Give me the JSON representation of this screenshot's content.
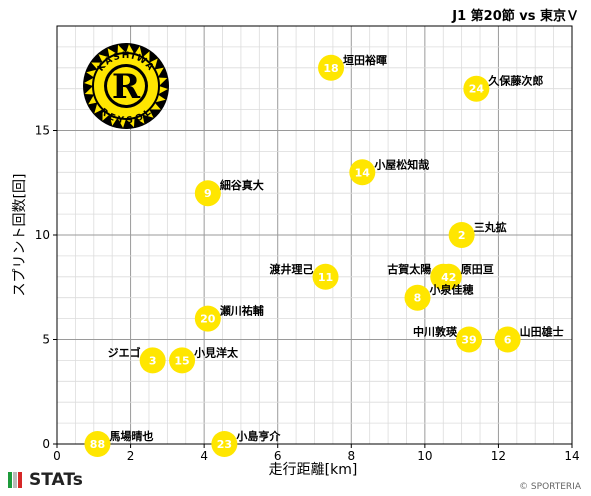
{
  "header": {
    "title": "J1 第20節 vs 東京Ｖ"
  },
  "footer": {
    "brand": "STATs",
    "copyright": "© SPORTERIA"
  },
  "logo": {
    "text_top": "KASHIWA",
    "text_bottom": "REYSOL",
    "letter": "R"
  },
  "colors": {
    "marker": "#FFE600",
    "marker_text": "#ffffff",
    "grid_major": "#9a9a9a",
    "grid_minor": "#dcdcdc"
  },
  "chart_data": {
    "type": "scatter",
    "title": "",
    "xlabel": "走行距離[km]",
    "ylabel": "スプリント回数[回]",
    "xlim": [
      0,
      14
    ],
    "ylim": [
      0,
      20
    ],
    "xticks": [
      0,
      2,
      4,
      6,
      8,
      10,
      12,
      14
    ],
    "yticks": [
      0,
      5,
      10,
      15
    ],
    "grid": true,
    "points": [
      {
        "number": "18",
        "name": "垣田裕暉",
        "x": 7.45,
        "y": 18
      },
      {
        "number": "24",
        "name": "久保藤次郎",
        "x": 11.4,
        "y": 17
      },
      {
        "number": "14",
        "name": "小屋松知哉",
        "x": 8.3,
        "y": 13
      },
      {
        "number": "9",
        "name": "細谷真大",
        "x": 4.1,
        "y": 12
      },
      {
        "number": "2",
        "name": "三丸拡",
        "x": 11.0,
        "y": 10
      },
      {
        "number": "11",
        "name": "渡井理己",
        "x": 7.3,
        "y": 8
      },
      {
        "number": "4",
        "name": "古賀太陽",
        "x": 10.5,
        "y": 8
      },
      {
        "number": "42",
        "name": "原田亘",
        "x": 10.65,
        "y": 8
      },
      {
        "number": "8",
        "name": "小泉佳穂",
        "x": 9.8,
        "y": 7
      },
      {
        "number": "20",
        "name": "瀬川祐輔",
        "x": 4.1,
        "y": 6
      },
      {
        "number": "39",
        "name": "中川敦瑛",
        "x": 11.2,
        "y": 5
      },
      {
        "number": "6",
        "name": "山田雄士",
        "x": 12.25,
        "y": 5
      },
      {
        "number": "3",
        "name": "ジエゴ",
        "x": 2.6,
        "y": 4
      },
      {
        "number": "15",
        "name": "小見洋太",
        "x": 3.4,
        "y": 4
      },
      {
        "number": "88",
        "name": "馬場晴也",
        "x": 1.1,
        "y": 0
      },
      {
        "number": "23",
        "name": "小島亨介",
        "x": 4.55,
        "y": 0
      }
    ]
  }
}
